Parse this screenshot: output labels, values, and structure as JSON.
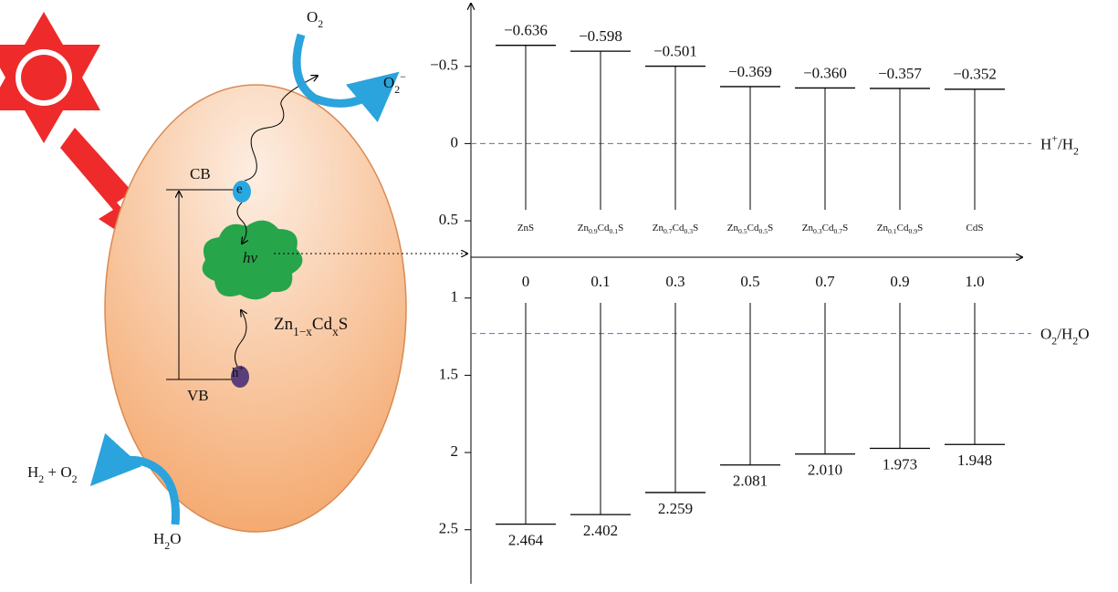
{
  "chart_data": {
    "type": "band_edges",
    "categories": [
      "ZnS",
      "Zn0.9Cd0.1S",
      "Zn0.7Cd0.3S",
      "Zn0.5Cd0.5S",
      "Zn0.3Cd0.7S",
      "Zn0.1Cd0.9S",
      "CdS"
    ],
    "compositions": [
      {
        "value": 0,
        "label": "0"
      },
      0.1,
      0.3,
      0.5,
      0.7,
      0.9,
      {
        "value": 1,
        "label": "1.0"
      }
    ],
    "series": [
      {
        "name": "CB",
        "color": "#000000",
        "values": [
          -0.636,
          -0.598,
          -0.501,
          -0.369,
          -0.36,
          -0.357,
          -0.352
        ],
        "value_labels": [
          "−0.636",
          "−0.598",
          "−0.501",
          "−0.369",
          "−0.360",
          "−0.357",
          "−0.352"
        ]
      },
      {
        "name": "VB",
        "color": "#000000",
        "values": [
          2.464,
          2.402,
          2.259,
          2.081,
          2.01,
          1.973,
          1.948
        ],
        "value_labels": [
          "2.464",
          "2.402",
          "2.259",
          "2.081",
          "2.010",
          "1.973",
          "1.948"
        ]
      }
    ],
    "ylim": [
      -0.9,
      2.85
    ],
    "y_inverted": true,
    "yticks": [
      {
        "value": -0.5,
        "label": "−0.5"
      },
      0,
      0.5,
      1,
      1.5,
      2,
      2.5
    ],
    "reference_lines": [
      {
        "value": 0,
        "label": "H+/H2",
        "color": "#4a7ab5"
      },
      {
        "value": 1.23,
        "label": "O2/H2O",
        "color": "#4a7ab5"
      }
    ]
  },
  "diagram": {
    "cb": "CB",
    "vb": "VB",
    "electron": "e",
    "hole": "h+",
    "photon": "hν",
    "material": "Zn1−xCdxS",
    "oxygen": "O2",
    "superoxide": "O2−",
    "products": "H2 + O2",
    "water": "H2O"
  }
}
